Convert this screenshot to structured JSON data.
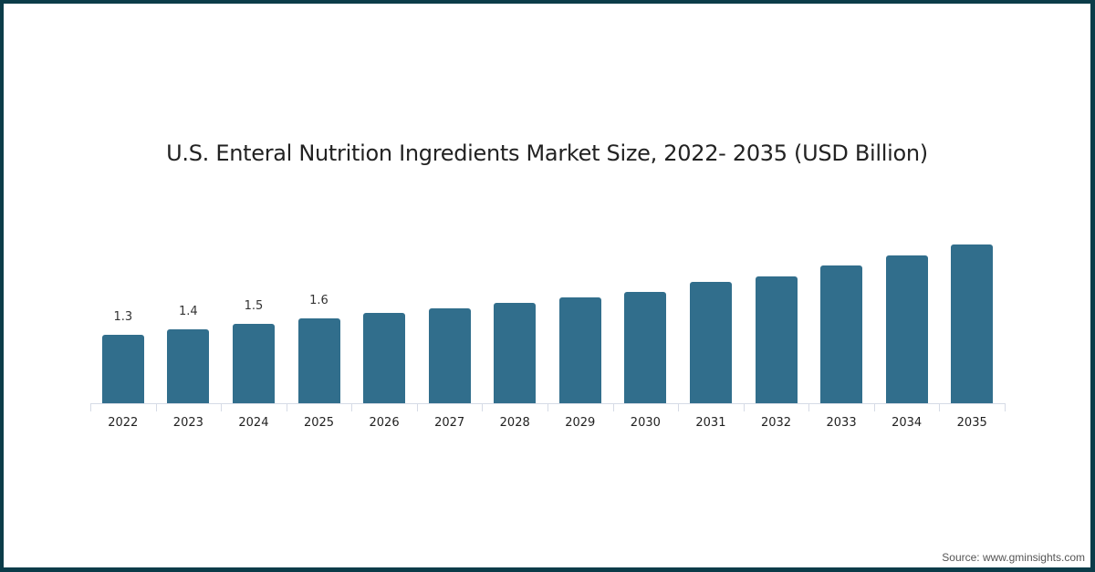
{
  "chart_data": {
    "type": "bar",
    "title": "U.S. Enteral Nutrition Ingredients Market Size, 2022- 2035 (USD Billion)",
    "xlabel": "",
    "ylabel": "",
    "categories": [
      "2022",
      "2023",
      "2024",
      "2025",
      "2026",
      "2027",
      "2028",
      "2029",
      "2030",
      "2031",
      "2032",
      "2033",
      "2034",
      "2035"
    ],
    "values": [
      1.3,
      1.4,
      1.5,
      1.6,
      1.7,
      1.8,
      1.9,
      2.0,
      2.1,
      2.3,
      2.4,
      2.6,
      2.8,
      3.0
    ],
    "data_labels": [
      "1.3",
      "1.4",
      "1.5",
      "1.6",
      "",
      "",
      "",
      "",
      "",
      "",
      "",
      "",
      "",
      ""
    ],
    "ylim": [
      0,
      3.4
    ],
    "grid": false,
    "legend": null,
    "bar_color": "#316e8c"
  },
  "footer": {
    "source": "Source: www.gminsights.com"
  },
  "colors": {
    "frame": "#0b3c49",
    "background": "#ffffff",
    "bar": "#316e8c",
    "axis": "#d6dbe6"
  }
}
